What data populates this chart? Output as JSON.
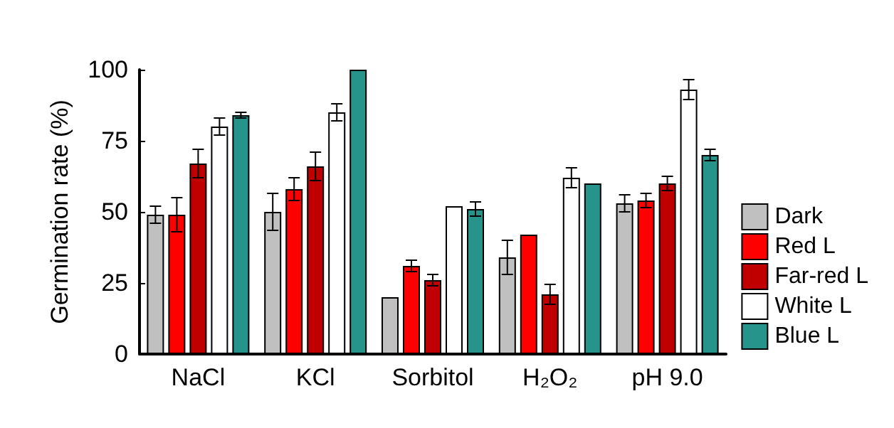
{
  "chart_data": {
    "type": "bar",
    "ylabel": "Germination rate (%)",
    "categories": [
      "NaCl",
      "KCl",
      "Sorbitol",
      "H₂O₂",
      "pH 9.0"
    ],
    "series": [
      {
        "name": "Dark",
        "color": "#c0c0c0",
        "values": [
          49,
          50,
          20,
          34,
          53
        ],
        "errors": [
          3,
          6.5,
          null,
          6,
          3
        ]
      },
      {
        "name": "Red L",
        "color": "#ff0000",
        "values": [
          49,
          58,
          31,
          42,
          54
        ],
        "errors": [
          6,
          4,
          2,
          null,
          2.5
        ]
      },
      {
        "name": "Far-red L",
        "color": "#c00000",
        "values": [
          67,
          66,
          26,
          21,
          60
        ],
        "errors": [
          5,
          5,
          2,
          3.5,
          2.5
        ]
      },
      {
        "name": "White L",
        "color": "#ffffff",
        "values": [
          80,
          85,
          52,
          62,
          93
        ],
        "errors": [
          3,
          3,
          null,
          3.5,
          3.5
        ]
      },
      {
        "name": "Blue L",
        "color": "#26948a",
        "values": [
          84,
          100,
          51,
          60,
          70
        ],
        "errors": [
          1,
          null,
          2.5,
          null,
          2
        ]
      }
    ],
    "ylim": [
      0,
      100
    ],
    "yticks": [
      0,
      25,
      50,
      75,
      100
    ],
    "grid": false,
    "legend": "right"
  }
}
